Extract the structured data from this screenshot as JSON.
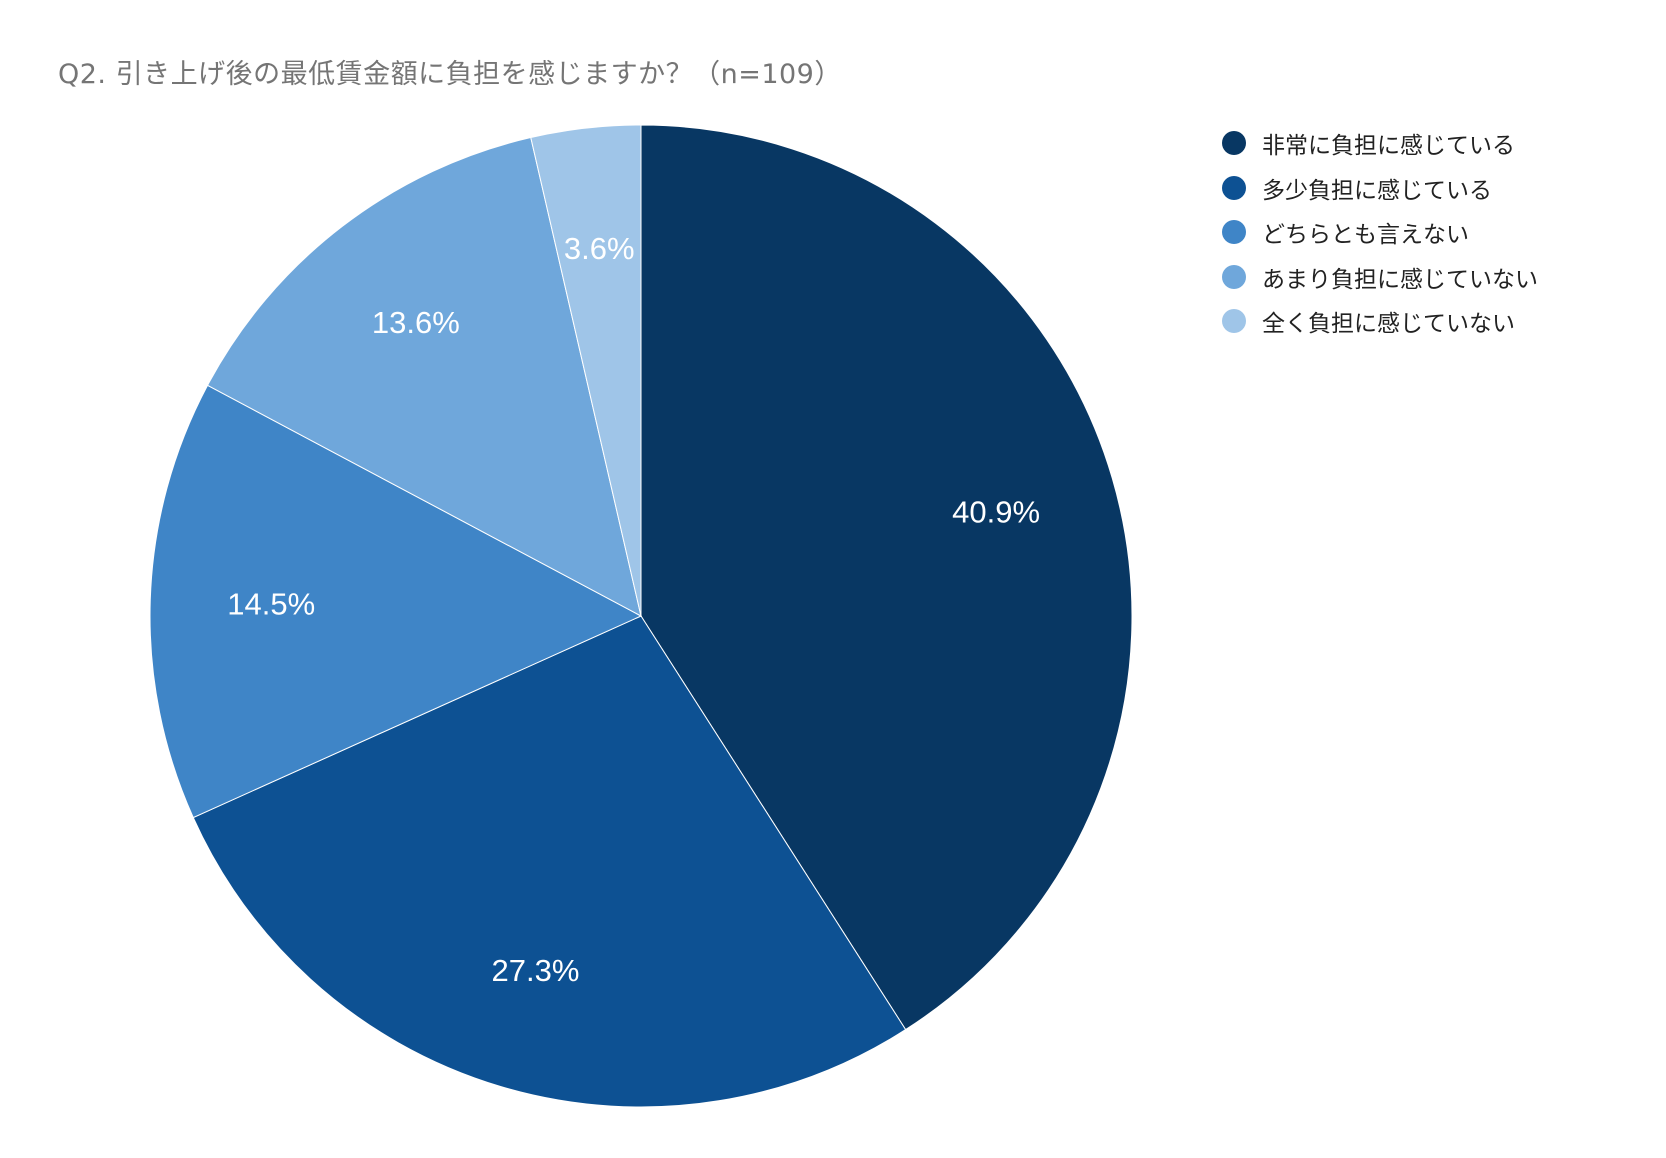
{
  "chart_data": {
    "type": "pie",
    "title": "Q2. 引き上げ後の最低賃金額に負担を感じますか？（n=109）",
    "legend_position": "right",
    "slices": [
      {
        "name": "非常に負担に感じている",
        "value": 40.9,
        "label": "40.9%",
        "color": "#083763"
      },
      {
        "name": "多少負担に感じている",
        "value": 27.3,
        "label": "27.3%",
        "color": "#0d5193"
      },
      {
        "name": "どちらとも言えない",
        "value": 14.5,
        "label": "14.5%",
        "color": "#3f85c7"
      },
      {
        "name": "あまり負担に感じていない",
        "value": 13.6,
        "label": "13.6%",
        "color": "#6fa7db"
      },
      {
        "name": "全く負担に感じていない",
        "value": 3.6,
        "label": "3.6%",
        "color": "#9fc5e8"
      }
    ]
  }
}
